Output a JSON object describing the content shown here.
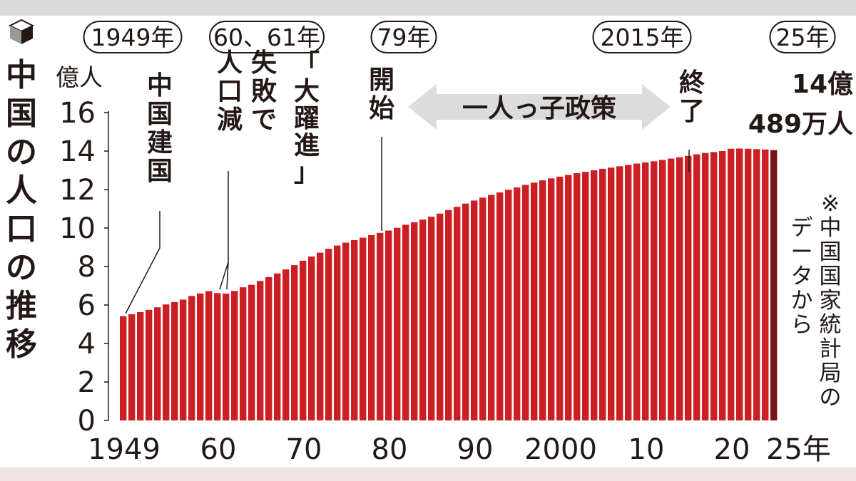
{
  "title": "中国の人口の推移",
  "chart_data": {
    "type": "bar",
    "ylabel": "億人",
    "ylim": [
      0,
      16
    ],
    "yticks": [
      "0",
      "2",
      "4",
      "6",
      "8",
      "10",
      "12",
      "14",
      "16"
    ],
    "x_tick_labels": [
      {
        "year": 1949,
        "label": "1949"
      },
      {
        "year": 1960,
        "label": "60"
      },
      {
        "year": 1970,
        "label": "70"
      },
      {
        "year": 1980,
        "label": "80"
      },
      {
        "year": 1990,
        "label": "90"
      },
      {
        "year": 2000,
        "label": "2000"
      },
      {
        "year": 2010,
        "label": "10"
      },
      {
        "year": 2020,
        "label": "20"
      },
      {
        "year": 2025,
        "label": "25年"
      }
    ],
    "years": [
      1949,
      1950,
      1951,
      1952,
      1953,
      1954,
      1955,
      1956,
      1957,
      1958,
      1959,
      1960,
      1961,
      1962,
      1963,
      1964,
      1965,
      1966,
      1967,
      1968,
      1969,
      1970,
      1971,
      1972,
      1973,
      1974,
      1975,
      1976,
      1977,
      1978,
      1979,
      1980,
      1981,
      1982,
      1983,
      1984,
      1985,
      1986,
      1987,
      1988,
      1989,
      1990,
      1991,
      1992,
      1993,
      1994,
      1995,
      1996,
      1997,
      1998,
      1999,
      2000,
      2001,
      2002,
      2003,
      2004,
      2005,
      2006,
      2007,
      2008,
      2009,
      2010,
      2011,
      2012,
      2013,
      2014,
      2015,
      2016,
      2017,
      2018,
      2019,
      2020,
      2021,
      2022,
      2023,
      2024,
      2025
    ],
    "values": [
      5.42,
      5.52,
      5.63,
      5.75,
      5.88,
      6.03,
      6.15,
      6.28,
      6.47,
      6.6,
      6.72,
      6.62,
      6.59,
      6.73,
      6.92,
      7.05,
      7.25,
      7.45,
      7.64,
      7.85,
      8.07,
      8.3,
      8.52,
      8.72,
      8.92,
      9.09,
      9.24,
      9.37,
      9.5,
      9.63,
      9.75,
      9.87,
      10.01,
      10.17,
      10.3,
      10.44,
      10.59,
      10.75,
      10.93,
      11.1,
      11.27,
      11.43,
      11.58,
      11.72,
      11.85,
      11.99,
      12.11,
      12.24,
      12.36,
      12.48,
      12.58,
      12.67,
      12.76,
      12.85,
      12.92,
      13.0,
      13.08,
      13.14,
      13.21,
      13.28,
      13.35,
      13.41,
      13.47,
      13.54,
      13.61,
      13.68,
      13.75,
      13.83,
      13.9,
      13.95,
      14.0,
      14.12,
      14.13,
      14.12,
      14.1,
      14.08,
      14.05
    ],
    "value_label": {
      "year": 2025,
      "lines": [
        "14億",
        "489万人"
      ]
    },
    "bar_color": "#cc1f24",
    "last_bar_color": "#7a1414"
  },
  "era_labels": [
    {
      "year": 1949,
      "label": "1949年"
    },
    {
      "year": 1960,
      "label": "60、61年"
    },
    {
      "year": 1979,
      "label": "79年"
    },
    {
      "year": 2015,
      "label": "2015年"
    },
    {
      "year": 2025,
      "label": "25年"
    }
  ],
  "annotations": {
    "founding": "中国建国",
    "failure_a": "失敗で",
    "failure_b": "人口減",
    "great_leap": "「大躍進」",
    "start": "開始",
    "policy": "一人っ子政策",
    "end": "終了"
  },
  "note": "※中国国家統計局のデータから",
  "colors": {
    "text": "#231815",
    "pill_border": "#231815",
    "arrow": "#dcdcdc",
    "band_top": "#d9d9d9",
    "band_bottom": "#efe3e3"
  },
  "icon": "cube-icon"
}
